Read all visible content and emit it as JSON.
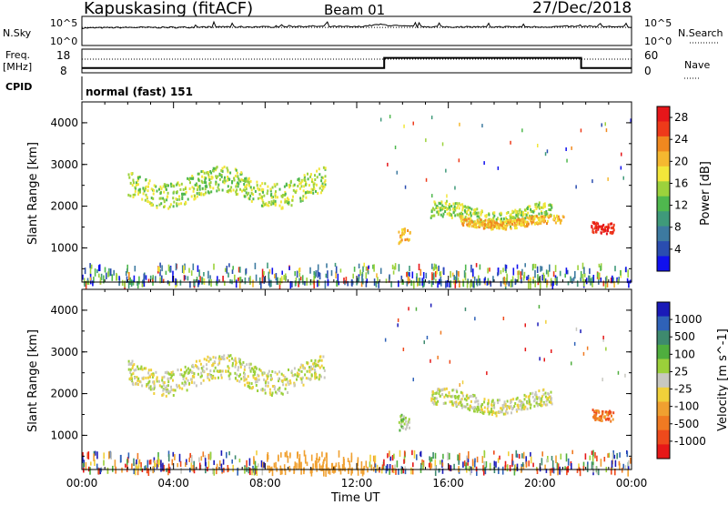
{
  "header": {
    "station": "Kapuskasing (fitACF)",
    "beam": "Beam 01",
    "date": "27/Dec/2018"
  },
  "top_panels": {
    "sky_label": "N.Sky",
    "sky_ticks": [
      "10^5",
      "10^0"
    ],
    "search_label": "N.Search",
    "search_ticks": [
      "10^5",
      "10^0"
    ],
    "freq_label_1": "Freq.",
    "freq_label_2": "[MHz]",
    "freq_ticks": [
      "18",
      "8"
    ],
    "nave_label": "Nave",
    "nave_ticks": [
      "60",
      "0"
    ],
    "cpid_label": "CPID",
    "cpid_value": "normal (fast) 151"
  },
  "colors": {
    "power_scale": [
      "#1010ee",
      "#2a4db0",
      "#3d7aa0",
      "#3f9a7a",
      "#4fb84e",
      "#9cd23c",
      "#f2e63a",
      "#f5b830",
      "#f0881f",
      "#ee3a1a",
      "#e6161a"
    ],
    "velocity_scale": [
      "#1a1ab8",
      "#2f62b8",
      "#3e8a6e",
      "#4fae3e",
      "#9bd03a",
      "#c8c8c0",
      "#f0d03a",
      "#f0a030",
      "#f07a22",
      "#ee4a1c",
      "#e61818"
    ]
  },
  "chart_data": [
    {
      "type": "line",
      "name": "sky-noise",
      "x": [
        0,
        2,
        4,
        6,
        8,
        10,
        12,
        13,
        14,
        16,
        18,
        20,
        22,
        24
      ],
      "y_log10": [
        3.0,
        3.1,
        3.1,
        3.2,
        3.2,
        3.3,
        3.2,
        3.6,
        3.3,
        3.2,
        3.2,
        3.2,
        3.3,
        3.2
      ],
      "ylim": [
        "10^0",
        "10^5"
      ]
    },
    {
      "type": "line",
      "name": "transmit-frequency",
      "x": [
        0,
        13.2,
        13.2,
        21.8,
        21.8,
        24
      ],
      "y": [
        10,
        10,
        14.3,
        14.3,
        10,
        10
      ],
      "ylim": [
        8,
        18
      ]
    },
    {
      "type": "heatmap",
      "name": "power",
      "xlabel": "Time UT",
      "ylabel": "Slant Range [km]",
      "xticks": [
        "00:00",
        "04:00",
        "08:00",
        "12:00",
        "16:00",
        "20:00",
        "00:00"
      ],
      "yticks": [
        "1000",
        "2000",
        "3000",
        "4000"
      ],
      "xlim": [
        0,
        24
      ],
      "ylim": [
        180,
        4500
      ],
      "colorbar_label": "Power [dB]",
      "colorbar_ticks": [
        "28",
        "24",
        "20",
        "16",
        "12",
        "8",
        "4"
      ],
      "colorbar_range": [
        0,
        30
      ],
      "echo_regions": [
        {
          "t0": 2.0,
          "t1": 10.6,
          "r0": 2050,
          "r1": 2900,
          "level": 5
        },
        {
          "t0": 13.8,
          "t1": 14.3,
          "r0": 1150,
          "r1": 1700,
          "level": 7
        },
        {
          "t0": 15.2,
          "t1": 20.5,
          "r0": 1550,
          "r1": 2100,
          "level": 5
        },
        {
          "t0": 16.5,
          "t1": 21.0,
          "r0": 1500,
          "r1": 1800,
          "level": 7
        },
        {
          "t0": 22.2,
          "t1": 23.2,
          "r0": 1400,
          "r1": 1750,
          "level": 10
        }
      ],
      "near_range_clutter": {
        "r0": 200,
        "r1": 650
      }
    },
    {
      "type": "heatmap",
      "name": "velocity",
      "xlabel": "Time UT",
      "ylabel": "Slant Range [km]",
      "xticks": [
        "00:00",
        "04:00",
        "08:00",
        "12:00",
        "16:00",
        "20:00",
        "00:00"
      ],
      "yticks": [
        "1000",
        "2000",
        "3000",
        "4000"
      ],
      "xlim": [
        0,
        24
      ],
      "ylim": [
        180,
        4500
      ],
      "colorbar_label": "Velocity [m s^-1]",
      "colorbar_ticks": [
        "1000",
        "500",
        "100",
        "25",
        "-25",
        "-100",
        "-500",
        "-1000"
      ],
      "echo_regions": [
        {
          "t0": 2.0,
          "t1": 10.6,
          "r0": 2050,
          "r1": 2900,
          "level": 5
        },
        {
          "t0": 13.8,
          "t1": 14.3,
          "r0": 1150,
          "r1": 1700,
          "level": 4
        },
        {
          "t0": 15.2,
          "t1": 20.5,
          "r0": 1550,
          "r1": 2100,
          "level": 5
        },
        {
          "t0": 22.2,
          "t1": 23.2,
          "r0": 1400,
          "r1": 1750,
          "level": 8
        }
      ],
      "near_range_clutter": {
        "r0": 200,
        "r1": 650
      }
    }
  ]
}
